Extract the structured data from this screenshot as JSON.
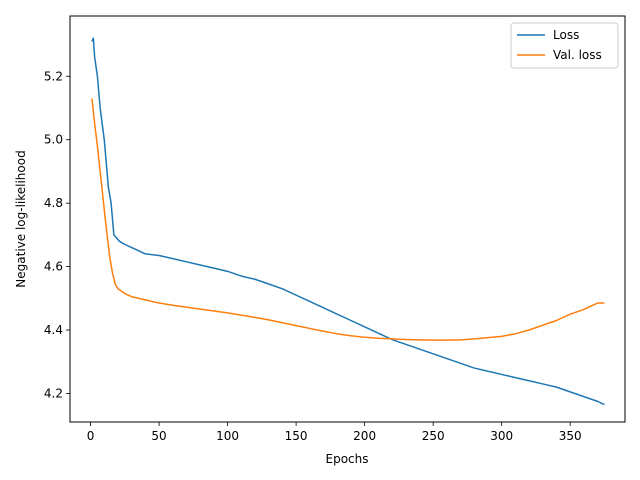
{
  "chart_data": {
    "type": "line",
    "title": "",
    "xlabel": "Epochs",
    "ylabel": "Negative log-likelihood",
    "xlim": [
      -15,
      390
    ],
    "ylim": [
      4.11,
      5.39
    ],
    "xticks": [
      0,
      50,
      100,
      150,
      200,
      250,
      300,
      350
    ],
    "yticks": [
      4.2,
      4.4,
      4.6,
      4.8,
      5.0,
      5.2
    ],
    "xtick_labels": [
      "0",
      "50",
      "100",
      "150",
      "200",
      "250",
      "300",
      "350"
    ],
    "ytick_labels": [
      "4.2",
      "4.4",
      "4.6",
      "4.8",
      "5.0",
      "5.2"
    ],
    "grid": false,
    "legend_position": "top-right",
    "series": [
      {
        "name": "Loss",
        "color": "#1f77b4",
        "x": [
          1,
          2,
          3,
          5,
          7,
          10,
          13,
          15,
          17,
          19,
          21,
          25,
          30,
          35,
          40,
          50,
          60,
          70,
          80,
          90,
          100,
          110,
          120,
          130,
          140,
          150,
          160,
          170,
          180,
          190,
          200,
          210,
          220,
          230,
          240,
          250,
          260,
          270,
          280,
          290,
          300,
          310,
          320,
          330,
          340,
          350,
          360,
          370,
          375
        ],
        "y": [
          5.31,
          5.32,
          5.26,
          5.2,
          5.1,
          5.0,
          4.85,
          4.8,
          4.7,
          4.69,
          4.68,
          4.67,
          4.66,
          4.65,
          4.64,
          4.635,
          4.625,
          4.615,
          4.605,
          4.595,
          4.585,
          4.57,
          4.56,
          4.545,
          4.53,
          4.51,
          4.49,
          4.47,
          4.45,
          4.43,
          4.41,
          4.39,
          4.37,
          4.355,
          4.34,
          4.325,
          4.31,
          4.295,
          4.28,
          4.27,
          4.26,
          4.25,
          4.24,
          4.23,
          4.22,
          4.205,
          4.19,
          4.175,
          4.165
        ]
      },
      {
        "name": "Val. loss",
        "color": "#ff7f0e",
        "x": [
          1,
          3,
          5,
          8,
          11,
          14,
          16,
          18,
          20,
          25,
          30,
          40,
          50,
          60,
          70,
          80,
          90,
          100,
          110,
          120,
          130,
          140,
          150,
          160,
          170,
          180,
          190,
          200,
          210,
          220,
          230,
          240,
          250,
          260,
          270,
          280,
          290,
          300,
          310,
          320,
          330,
          340,
          350,
          360,
          365,
          370,
          375
        ],
        "y": [
          5.13,
          5.05,
          4.98,
          4.86,
          4.74,
          4.63,
          4.58,
          4.545,
          4.53,
          4.515,
          4.505,
          4.495,
          4.485,
          4.478,
          4.472,
          4.466,
          4.46,
          4.454,
          4.447,
          4.44,
          4.432,
          4.423,
          4.414,
          4.405,
          4.396,
          4.388,
          4.382,
          4.377,
          4.374,
          4.372,
          4.37,
          4.369,
          4.368,
          4.368,
          4.369,
          4.372,
          4.376,
          4.38,
          4.388,
          4.4,
          4.415,
          4.43,
          4.45,
          4.465,
          4.475,
          4.485,
          4.485
        ]
      }
    ]
  }
}
